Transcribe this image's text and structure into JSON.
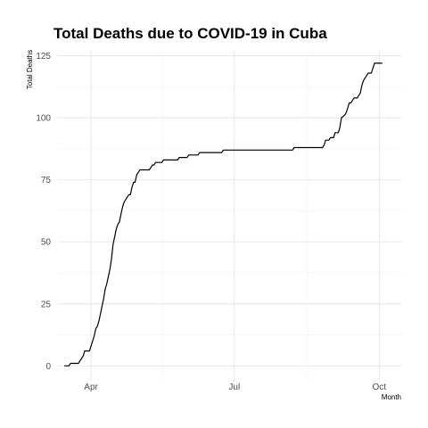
{
  "chart_data": {
    "type": "line",
    "title": "Total Deaths due to COVID-19 in Cuba",
    "xlabel": "Month",
    "ylabel": "Total Deaths",
    "xlim": [
      "2020-03-11",
      "2020-10-15"
    ],
    "ylim": [
      -6,
      127
    ],
    "x_ticks": [
      {
        "label": "Apr",
        "date": "2020-04-01"
      },
      {
        "label": "Jul",
        "date": "2020-07-01"
      },
      {
        "label": "Oct",
        "date": "2020-10-01"
      }
    ],
    "y_ticks": [
      0,
      25,
      50,
      75,
      100,
      125
    ],
    "grid": true,
    "series": [
      {
        "points": [
          [
            "2020-03-15",
            0
          ],
          [
            "2020-03-18",
            0
          ],
          [
            "2020-03-19",
            1
          ],
          [
            "2020-03-24",
            1
          ],
          [
            "2020-03-25",
            2
          ],
          [
            "2020-03-26",
            3
          ],
          [
            "2020-03-27",
            4
          ],
          [
            "2020-03-28",
            6
          ],
          [
            "2020-03-31",
            6
          ],
          [
            "2020-04-01",
            8
          ],
          [
            "2020-04-03",
            12
          ],
          [
            "2020-04-04",
            15
          ],
          [
            "2020-04-05",
            16
          ],
          [
            "2020-04-06",
            18
          ],
          [
            "2020-04-07",
            21
          ],
          [
            "2020-04-08",
            24
          ],
          [
            "2020-04-09",
            27
          ],
          [
            "2020-04-10",
            31
          ],
          [
            "2020-04-11",
            33
          ],
          [
            "2020-04-12",
            36
          ],
          [
            "2020-04-13",
            39
          ],
          [
            "2020-04-14",
            43
          ],
          [
            "2020-04-15",
            49
          ],
          [
            "2020-04-16",
            52
          ],
          [
            "2020-04-17",
            55
          ],
          [
            "2020-04-18",
            57
          ],
          [
            "2020-04-19",
            58
          ],
          [
            "2020-04-20",
            61
          ],
          [
            "2020-04-21",
            64
          ],
          [
            "2020-04-22",
            66
          ],
          [
            "2020-04-23",
            67
          ],
          [
            "2020-04-24",
            68
          ],
          [
            "2020-04-25",
            69
          ],
          [
            "2020-04-26",
            69
          ],
          [
            "2020-04-27",
            72
          ],
          [
            "2020-04-28",
            74
          ],
          [
            "2020-04-29",
            74
          ],
          [
            "2020-04-30",
            77
          ],
          [
            "2020-05-01",
            78
          ],
          [
            "2020-05-02",
            79
          ],
          [
            "2020-05-08",
            79
          ],
          [
            "2020-05-09",
            80
          ],
          [
            "2020-05-10",
            81
          ],
          [
            "2020-05-11",
            81
          ],
          [
            "2020-05-12",
            82
          ],
          [
            "2020-05-16",
            82
          ],
          [
            "2020-05-17",
            83
          ],
          [
            "2020-05-26",
            83
          ],
          [
            "2020-05-27",
            84
          ],
          [
            "2020-06-01",
            84
          ],
          [
            "2020-06-02",
            85
          ],
          [
            "2020-06-08",
            85
          ],
          [
            "2020-06-09",
            86
          ],
          [
            "2020-06-23",
            86
          ],
          [
            "2020-06-24",
            87
          ],
          [
            "2020-08-07",
            87
          ],
          [
            "2020-08-08",
            88
          ],
          [
            "2020-08-26",
            88
          ],
          [
            "2020-08-27",
            89
          ],
          [
            "2020-08-28",
            91
          ],
          [
            "2020-08-30",
            91
          ],
          [
            "2020-08-31",
            92
          ],
          [
            "2020-09-02",
            92
          ],
          [
            "2020-09-03",
            94
          ],
          [
            "2020-09-05",
            94
          ],
          [
            "2020-09-06",
            96
          ],
          [
            "2020-09-07",
            100
          ],
          [
            "2020-09-09",
            101
          ],
          [
            "2020-09-10",
            102
          ],
          [
            "2020-09-11",
            104
          ],
          [
            "2020-09-12",
            106
          ],
          [
            "2020-09-13",
            106
          ],
          [
            "2020-09-14",
            107
          ],
          [
            "2020-09-15",
            108
          ],
          [
            "2020-09-17",
            108
          ],
          [
            "2020-09-18",
            109
          ],
          [
            "2020-09-19",
            110
          ],
          [
            "2020-09-20",
            113
          ],
          [
            "2020-09-21",
            115
          ],
          [
            "2020-09-22",
            116
          ],
          [
            "2020-09-23",
            117
          ],
          [
            "2020-09-24",
            118
          ],
          [
            "2020-09-26",
            118
          ],
          [
            "2020-09-27",
            120
          ],
          [
            "2020-09-28",
            122
          ],
          [
            "2020-10-03",
            122
          ]
        ]
      }
    ]
  }
}
